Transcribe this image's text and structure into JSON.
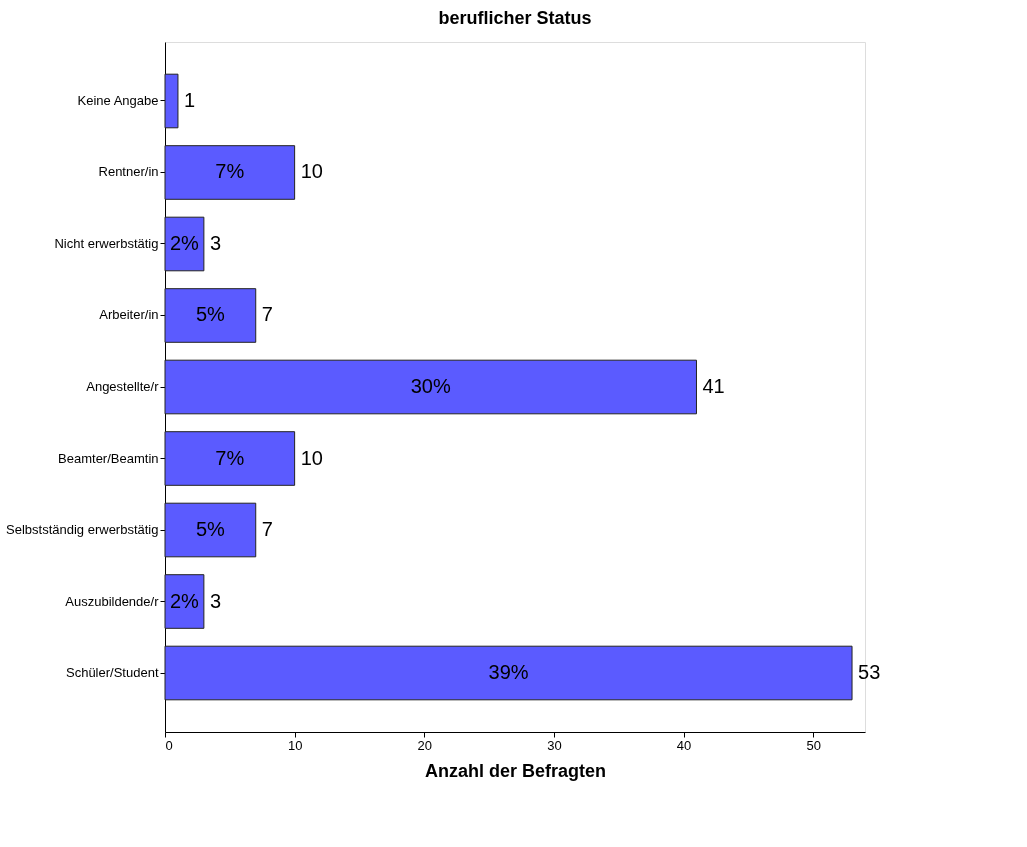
{
  "chart_data": {
    "type": "bar",
    "orientation": "horizontal",
    "title": "beruflicher Status",
    "xlabel": "Anzahl der Befragten",
    "categories": [
      "Keine Angabe",
      "Rentner/in",
      "Nicht erwerbstätig",
      "Arbeiter/in",
      "Angestellte/r",
      "Beamter/Beamtin",
      "Selbstständig erwerbstätig",
      "Auszubildende/r",
      "Schüler/Student"
    ],
    "values": [
      1,
      10,
      3,
      7,
      41,
      10,
      7,
      3,
      53
    ],
    "data_labels": true,
    "color": "#5b5bff",
    "annotations": [
      {
        "text": "7%",
        "x": 5,
        "y": "Rentner/in"
      },
      {
        "text": "2%",
        "x": 1.5,
        "y": "Nicht erwerbstätig"
      },
      {
        "text": "5%",
        "x": 3.5,
        "y": "Arbeiter/in"
      },
      {
        "text": "30%",
        "x": 20.5,
        "y": "Angestellte/r"
      },
      {
        "text": "7%",
        "x": 5,
        "y": "Beamter/Beamtin"
      },
      {
        "text": "5%",
        "x": 3.5,
        "y": "Selbstständig erwerbstätig"
      },
      {
        "text": "2%",
        "x": 1.5,
        "y": "Auszubildende/r"
      },
      {
        "text": "39%",
        "x": 26.5,
        "y": "Schüler/Student"
      }
    ],
    "xlim": [
      0,
      54
    ],
    "xticks": [
      0,
      10,
      20,
      30,
      40,
      50
    ],
    "grid": false,
    "legend": false
  }
}
